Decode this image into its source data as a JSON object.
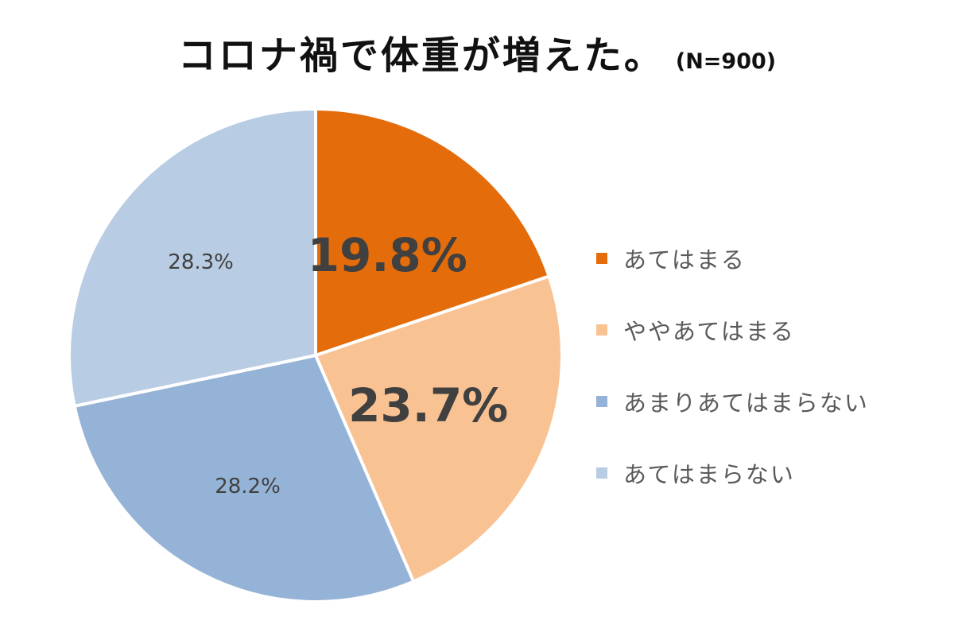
{
  "title": {
    "main": "コロナ禍で体重が増えた。",
    "sample": "(N=900)"
  },
  "chart_data": {
    "type": "pie",
    "title": "コロナ禍で体重が増えた。",
    "subtitle": "(N=900)",
    "start_angle_deg": 0,
    "direction": "clockwise",
    "legend_position": "right",
    "slices": [
      {
        "label": "あてはまる",
        "value": 19.8,
        "display": "19.8%",
        "color": "#E46C0A",
        "label_emphasis": "large"
      },
      {
        "label": "ややあてはまる",
        "value": 23.7,
        "display": "23.7%",
        "color": "#F8C293",
        "label_emphasis": "large"
      },
      {
        "label": "あまりあてはまらない",
        "value": 28.2,
        "display": "28.2%",
        "color": "#95B3D7",
        "label_emphasis": "normal"
      },
      {
        "label": "あてはまらない",
        "value": 28.3,
        "display": "28.3%",
        "color": "#B8CCE4",
        "label_emphasis": "normal"
      }
    ]
  }
}
